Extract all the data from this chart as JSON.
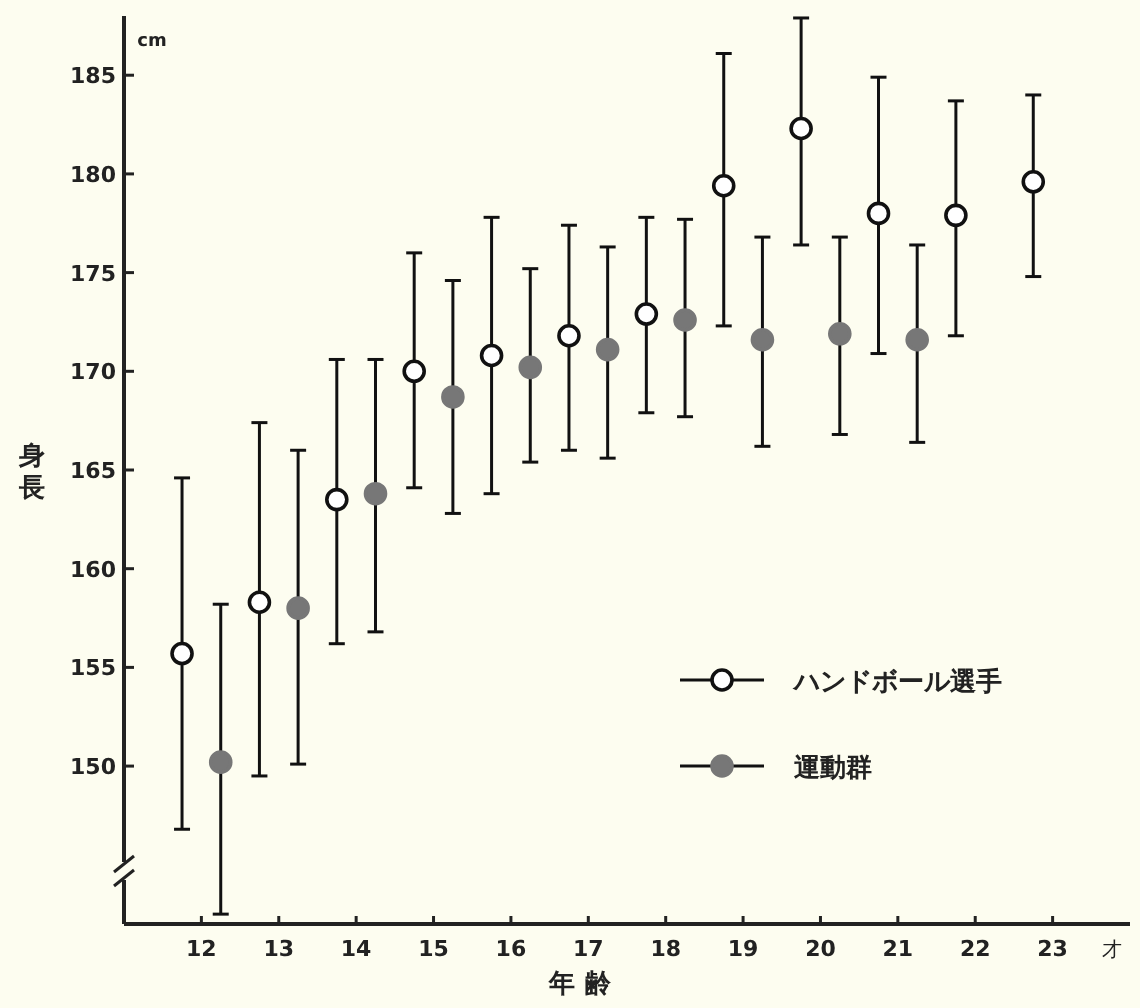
{
  "chart_data": {
    "type": "scatter",
    "xlabel": "年 齢",
    "ylabel": "身長",
    "annotations": [
      "cm",
      "才"
    ],
    "xlim": [
      11,
      24
    ],
    "xticks": [
      12,
      13,
      14,
      15,
      16,
      17,
      18,
      19,
      20,
      21,
      22,
      23
    ],
    "ylim": [
      142,
      188
    ],
    "yticks": [
      150,
      155,
      160,
      165,
      170,
      175,
      180,
      185
    ],
    "grid": false,
    "legend": "right",
    "series": [
      {
        "name": "ハンドボール選手",
        "color": "#ffffff",
        "marker": "circle",
        "x": [
          11.75,
          12.75,
          13.75,
          14.75,
          15.75,
          16.75,
          17.75,
          18.75,
          19.75,
          20.75,
          21.75,
          22.75
        ],
        "values": [
          155.7,
          158.3,
          163.5,
          170.0,
          170.8,
          171.8,
          172.9,
          179.4,
          182.3,
          178.0,
          177.9,
          179.6
        ],
        "errors": [
          [
            146.8,
            164.6
          ],
          [
            149.5,
            167.4
          ],
          [
            156.2,
            170.6
          ],
          [
            164.1,
            176.0
          ],
          [
            163.8,
            177.8
          ],
          [
            166.0,
            177.4
          ],
          [
            167.9,
            177.8
          ],
          [
            172.3,
            186.1
          ],
          [
            176.4,
            187.9
          ],
          [
            170.9,
            184.9
          ],
          [
            171.8,
            183.7
          ],
          [
            174.8,
            184.0
          ]
        ]
      },
      {
        "name": "運動群",
        "color": "#777777",
        "marker": "circle",
        "x": [
          12.25,
          13.25,
          14.25,
          15.25,
          16.25,
          17.25,
          18.25,
          19.25,
          20.25,
          21.25
        ],
        "values": [
          150.2,
          158.0,
          163.8,
          168.7,
          170.2,
          171.1,
          172.6,
          171.6,
          171.9,
          171.6
        ],
        "errors": [
          [
            142.5,
            158.2
          ],
          [
            150.1,
            166.0
          ],
          [
            156.8,
            170.6
          ],
          [
            162.8,
            174.6
          ],
          [
            165.4,
            175.2
          ],
          [
            165.6,
            176.3
          ],
          [
            167.7,
            177.7
          ],
          [
            166.2,
            176.8
          ],
          [
            166.8,
            176.8
          ],
          [
            166.4,
            176.4
          ]
        ]
      }
    ]
  }
}
